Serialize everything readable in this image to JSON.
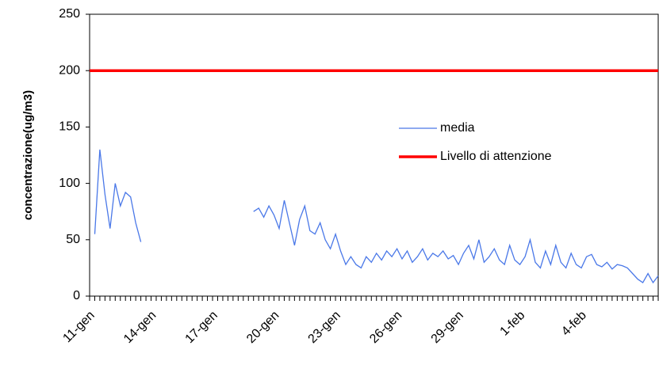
{
  "chart_data": {
    "type": "line",
    "y_label": "concentrazione(ug/m3)",
    "categories": [
      "11-gen",
      null,
      null,
      null,
      null,
      null,
      null,
      null,
      null,
      null,
      null,
      null,
      "14-gen",
      null,
      null,
      null,
      null,
      null,
      null,
      null,
      null,
      null,
      null,
      null,
      "17-gen",
      null,
      null,
      null,
      null,
      null,
      null,
      null,
      null,
      null,
      null,
      null,
      "20-gen",
      null,
      null,
      null,
      null,
      null,
      null,
      null,
      null,
      null,
      null,
      null,
      "23-gen",
      null,
      null,
      null,
      null,
      null,
      null,
      null,
      null,
      null,
      null,
      null,
      "26-gen",
      null,
      null,
      null,
      null,
      null,
      null,
      null,
      null,
      null,
      null,
      null,
      "29-gen",
      null,
      null,
      null,
      null,
      null,
      null,
      null,
      null,
      null,
      null,
      null,
      "1-feb",
      null,
      null,
      null,
      null,
      null,
      null,
      null,
      null,
      null,
      null,
      null,
      "4-feb",
      null,
      null,
      null,
      null,
      null,
      null,
      null,
      null,
      null,
      null,
      null,
      null,
      null,
      null,
      null
    ],
    "series": [
      {
        "name": "media",
        "color": "#4a78e8",
        "width": 1.3,
        "values": [
          null,
          55,
          130,
          90,
          60,
          100,
          80,
          92,
          88,
          65,
          48,
          null,
          null,
          null,
          null,
          null,
          null,
          null,
          null,
          null,
          null,
          null,
          null,
          null,
          null,
          null,
          null,
          null,
          null,
          null,
          null,
          null,
          75,
          78,
          70,
          80,
          72,
          60,
          85,
          65,
          45,
          68,
          80,
          58,
          55,
          65,
          50,
          42,
          55,
          40,
          28,
          35,
          28,
          25,
          35,
          30,
          38,
          32,
          40,
          35,
          42,
          33,
          40,
          30,
          35,
          42,
          32,
          38,
          35,
          40,
          33,
          36,
          28,
          38,
          45,
          33,
          50,
          30,
          35,
          42,
          32,
          28,
          45,
          32,
          28,
          35,
          50,
          30,
          25,
          40,
          28,
          45,
          30,
          25,
          38,
          28,
          25,
          35,
          37,
          28,
          26,
          30,
          24,
          28,
          27,
          25,
          20,
          15,
          12,
          20,
          12,
          18
        ]
      },
      {
        "name": "Livello di attenzione",
        "color": "#ff0000",
        "width": 3.5,
        "values": [
          200,
          200,
          200,
          200,
          200,
          200,
          200,
          200,
          200,
          200,
          200,
          200,
          200,
          200,
          200,
          200,
          200,
          200,
          200,
          200,
          200,
          200,
          200,
          200,
          200,
          200,
          200,
          200,
          200,
          200,
          200,
          200,
          200,
          200,
          200,
          200,
          200,
          200,
          200,
          200,
          200,
          200,
          200,
          200,
          200,
          200,
          200,
          200,
          200,
          200,
          200,
          200,
          200,
          200,
          200,
          200,
          200,
          200,
          200,
          200,
          200,
          200,
          200,
          200,
          200,
          200,
          200,
          200,
          200,
          200,
          200,
          200,
          200,
          200,
          200,
          200,
          200,
          200,
          200,
          200,
          200,
          200,
          200,
          200,
          200,
          200,
          200,
          200,
          200,
          200,
          200,
          200,
          200,
          200,
          200,
          200,
          200,
          200,
          200,
          200,
          200,
          200,
          200,
          200,
          200,
          200,
          200,
          200,
          200,
          200,
          200,
          200
        ]
      }
    ],
    "ylim": [
      0,
      250
    ],
    "yticks": [
      0,
      50,
      100,
      150,
      200,
      250
    ]
  }
}
